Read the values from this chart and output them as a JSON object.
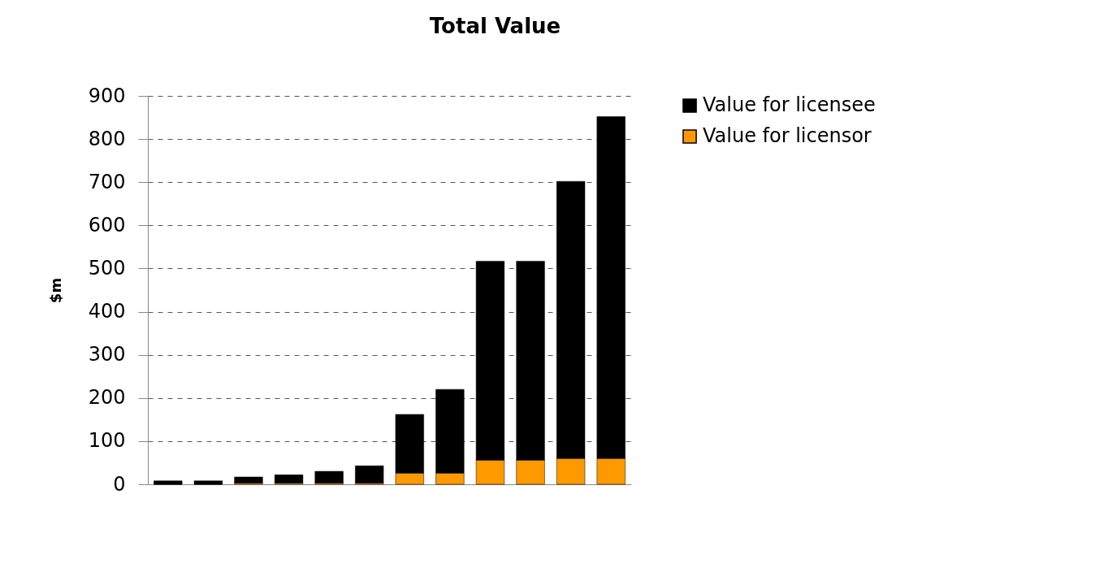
{
  "chart_data": {
    "type": "bar",
    "title": "Total Value",
    "ylabel": "$m",
    "stacked": true,
    "categories": [
      null,
      null,
      null,
      null,
      null,
      null,
      null,
      null,
      null,
      null,
      null,
      null
    ],
    "series": [
      {
        "name": "Value for licensor",
        "color": "#ff9900",
        "values": [
          0,
          0,
          3,
          3,
          3,
          3,
          26,
          26,
          56,
          56,
          60,
          60
        ]
      },
      {
        "name": "Value for licensee",
        "color": "#000000",
        "values": [
          8,
          8,
          14,
          19,
          27,
          40,
          136,
          194,
          461,
          461,
          642,
          792
        ]
      }
    ],
    "ylim": [
      0,
      900
    ],
    "yticks": [
      0,
      100,
      200,
      300,
      400,
      500,
      600,
      700,
      800,
      900
    ],
    "grid": "y",
    "legend": "right",
    "tick_labels": "y"
  }
}
